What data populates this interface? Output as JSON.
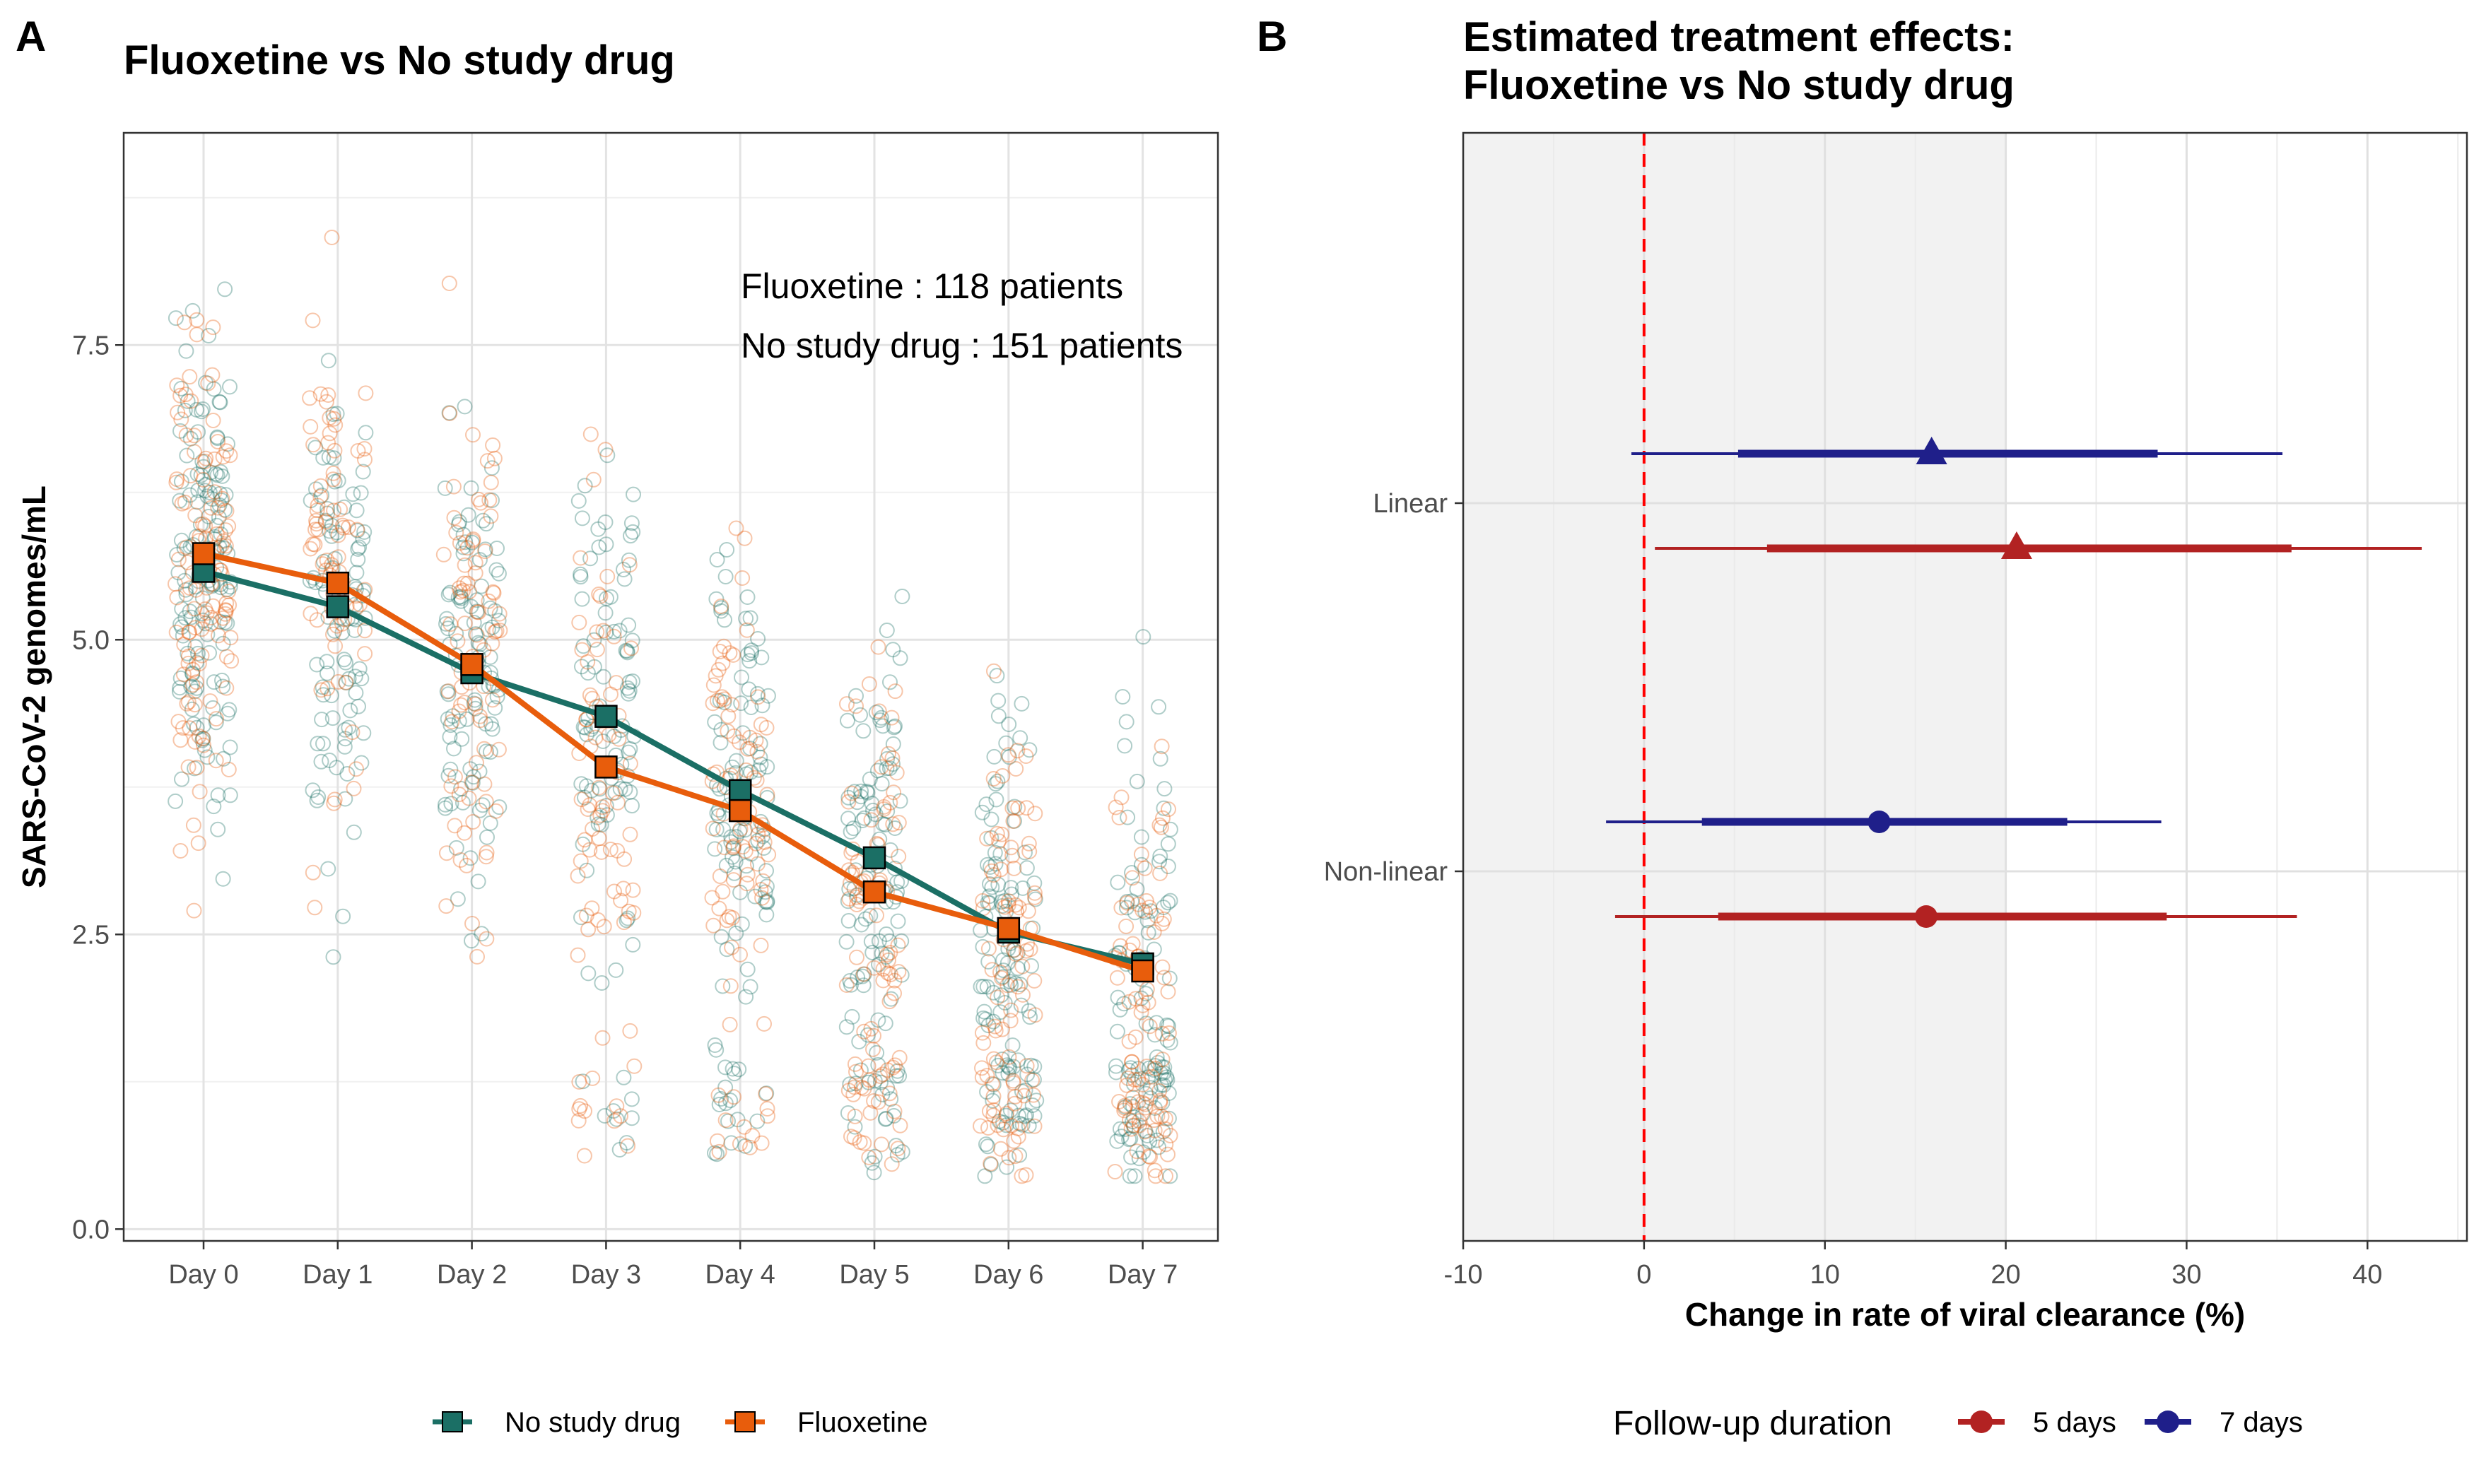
{
  "panel_a": {
    "letter": "A",
    "title": "Fluoxetine vs No study drug",
    "annotation_line1": "Fluoxetine : 118 patients",
    "annotation_line2": "No study drug : 151 patients",
    "legend": [
      {
        "label": "No study drug",
        "color": "#1b6f65"
      },
      {
        "label": "Fluoxetine",
        "color": "#e85d0c"
      }
    ]
  },
  "panel_b": {
    "letter": "B",
    "title_line1": "Estimated treatment effects:",
    "title_line2": "Fluoxetine vs No study drug",
    "legend_title": "Follow-up duration",
    "legend": [
      {
        "label": "5 days",
        "color": "#b22222"
      },
      {
        "label": "7 days",
        "color": "#1f1f8a"
      }
    ]
  },
  "chart_data": [
    {
      "type": "line",
      "title": "Fluoxetine vs No study drug",
      "xlabel": "",
      "ylabel": "SARS-CoV-2 genomes/mL",
      "categories": [
        "Day 0",
        "Day 1",
        "Day 2",
        "Day 3",
        "Day 4",
        "Day 5",
        "Day 6",
        "Day 7"
      ],
      "ylim": [
        -0.1,
        9.3
      ],
      "yticks": [
        "0.0",
        "2.5",
        "5.0",
        "7.5"
      ],
      "grid": true,
      "legend_position": "bottom",
      "series": [
        {
          "name": "No study drug",
          "color": "#1b6f65",
          "values": [
            5.58,
            5.28,
            4.72,
            4.35,
            3.72,
            3.15,
            2.52,
            2.25
          ]
        },
        {
          "name": "Fluoxetine",
          "color": "#e85d0c",
          "values": [
            5.73,
            5.48,
            4.79,
            3.92,
            3.55,
            2.86,
            2.55,
            2.19
          ]
        }
      ],
      "scatter_note_counts": [
        151,
        118
      ]
    },
    {
      "type": "scatter",
      "title": "Estimated treatment effects: Fluoxetine vs No study drug",
      "xlabel": "Change in rate of viral clearance (%)",
      "ylabel": "",
      "xlim": [
        -10,
        45.5
      ],
      "xticks": [
        "-10",
        "0",
        "10",
        "20",
        "30",
        "40"
      ],
      "categories": [
        "Linear",
        "Non-linear"
      ],
      "reference_line_x": 0,
      "shaded_region_x": [
        -10,
        20
      ],
      "legend_title": "Follow-up duration",
      "legend_position": "bottom",
      "series": [
        {
          "name": "5 days",
          "color": "#b22222",
          "points": [
            {
              "model": "Linear",
              "estimate": 20.6,
              "ci80": [
                6.8,
                35.8
              ],
              "ci95": [
                0.6,
                43.0
              ],
              "shape": "triangle"
            },
            {
              "model": "Non-linear",
              "estimate": 15.6,
              "ci80": [
                4.1,
                28.9
              ],
              "ci95": [
                -1.6,
                36.1
              ],
              "shape": "circle"
            }
          ]
        },
        {
          "name": "7 days",
          "color": "#1f1f8a",
          "points": [
            {
              "model": "Linear",
              "estimate": 15.9,
              "ci80": [
                5.2,
                28.4
              ],
              "ci95": [
                -0.7,
                35.3
              ],
              "shape": "triangle"
            },
            {
              "model": "Non-linear",
              "estimate": 13.0,
              "ci80": [
                3.2,
                23.4
              ],
              "ci95": [
                -2.1,
                28.6
              ],
              "shape": "circle"
            }
          ]
        }
      ]
    }
  ]
}
